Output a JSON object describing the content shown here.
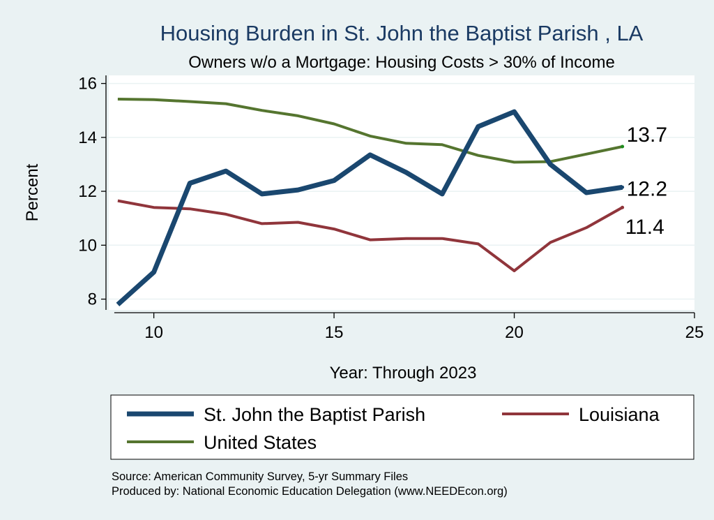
{
  "chart_data": {
    "type": "line",
    "title": "Housing Burden in St. John the Baptist Parish , LA",
    "subtitle": "Owners w/o a Mortgage: Housing Costs > 30% of Income",
    "xlabel": "Year: Through 2023",
    "ylabel": "Percent",
    "xlim": [
      8.75,
      25
    ],
    "ylim": [
      7.6,
      16.3
    ],
    "xticks": [
      10,
      15,
      20,
      25
    ],
    "yticks": [
      8,
      10,
      12,
      14,
      16
    ],
    "grid": true,
    "legend_position": "bottom",
    "x": [
      9,
      10,
      11,
      12,
      13,
      14,
      15,
      16,
      17,
      18,
      19,
      20,
      21,
      22,
      23
    ],
    "series": [
      {
        "name": "St. John the Baptist Parish",
        "color": "#1a476f",
        "values": [
          7.8,
          9.0,
          12.3,
          12.75,
          11.9,
          12.05,
          12.4,
          13.35,
          12.7,
          11.9,
          14.4,
          14.95,
          13.0,
          11.95,
          12.15
        ],
        "end_label": "12.2"
      },
      {
        "name": "Louisiana",
        "color": "#90353b",
        "values": [
          11.65,
          11.4,
          11.35,
          11.15,
          10.8,
          10.85,
          10.6,
          10.2,
          10.25,
          10.25,
          10.05,
          9.05,
          10.1,
          10.65,
          11.4
        ],
        "end_label": "11.4"
      },
      {
        "name": "United States",
        "color": "#55752f",
        "values": [
          15.42,
          15.4,
          15.33,
          15.25,
          15.0,
          14.8,
          14.5,
          14.05,
          13.78,
          13.73,
          13.33,
          13.08,
          13.1,
          13.38,
          13.66
        ],
        "end_label": "13.7"
      }
    ],
    "source_lines": [
      "Source: American Community Survey, 5-yr Summary Files",
      "Produced by: National Economic Education Delegation (www.NEEDEcon.org)"
    ]
  }
}
